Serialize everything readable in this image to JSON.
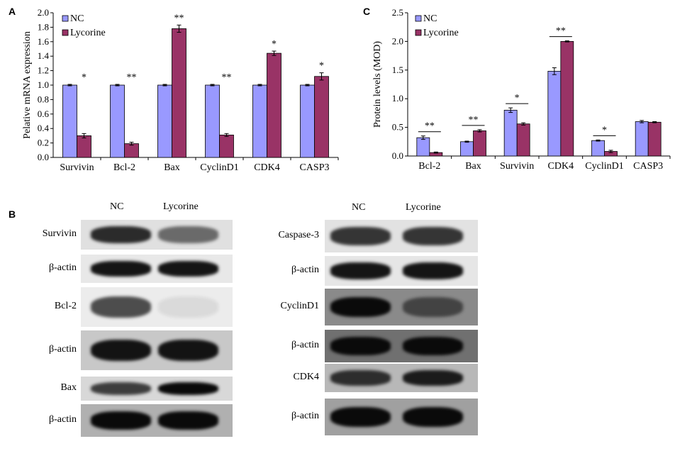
{
  "panel_labels": {
    "a": "A",
    "b": "B",
    "c": "C"
  },
  "chart_data": [
    {
      "type": "bar",
      "panel": "A",
      "ylabel": "Pelative mRNA expression",
      "xlabel": "",
      "title": "",
      "ylim": [
        0,
        2.0
      ],
      "yticks": [
        "0.0",
        "0.2",
        "0.4",
        "0.6",
        "0.8",
        "1.0",
        "1.2",
        "1.4",
        "1.6",
        "1.8",
        "2.0"
      ],
      "categories": [
        "Survivin",
        "Bcl-2",
        "Bax",
        "CyclinD1",
        "CDK4",
        "CASP3"
      ],
      "series": [
        {
          "name": "NC",
          "values": [
            1.0,
            1.0,
            1.0,
            1.0,
            1.0,
            1.0
          ],
          "errors": [
            0.01,
            0.01,
            0.01,
            0.01,
            0.01,
            0.01
          ]
        },
        {
          "name": "Lycorine",
          "values": [
            0.3,
            0.19,
            1.78,
            0.31,
            1.44,
            1.12
          ],
          "errors": [
            0.03,
            0.02,
            0.05,
            0.02,
            0.03,
            0.05
          ]
        }
      ],
      "significance": [
        "*",
        "**",
        "**",
        "**",
        "*",
        "*"
      ],
      "colors": {
        "nc": "#9999ff",
        "lycorine": "#993366"
      },
      "legend": "top-left"
    },
    {
      "type": "bar",
      "panel": "C",
      "ylabel": "Protein levels (MOD)",
      "xlabel": "",
      "title": "",
      "ylim": [
        0,
        2.5
      ],
      "yticks": [
        "0.0",
        "0.5",
        "1.0",
        "1.5",
        "2.0",
        "2.5"
      ],
      "categories": [
        "Bcl-2",
        "Bax",
        "Survivin",
        "CDK4",
        "CyclinD1",
        "CASP3"
      ],
      "series": [
        {
          "name": "NC",
          "values": [
            0.32,
            0.25,
            0.8,
            1.48,
            0.27,
            0.6
          ],
          "errors": [
            0.03,
            0.01,
            0.04,
            0.06,
            0.01,
            0.02
          ]
        },
        {
          "name": "Lycorine",
          "values": [
            0.06,
            0.44,
            0.56,
            2.0,
            0.08,
            0.59
          ],
          "errors": [
            0.01,
            0.02,
            0.02,
            0.01,
            0.02,
            0.01
          ]
        }
      ],
      "significance": [
        "**",
        "**",
        "*",
        "**",
        "*",
        ""
      ],
      "colors": {
        "nc": "#9999ff",
        "lycorine": "#993366"
      },
      "legend": "top-left"
    }
  ],
  "blots": {
    "left": {
      "columns": [
        "NC",
        "Lycorine"
      ],
      "rows": [
        {
          "label": "Survivin",
          "nc": 0.85,
          "ly": 0.55,
          "bg": "#e0e0e0"
        },
        {
          "label": "β-actin",
          "nc": 0.95,
          "ly": 0.95,
          "bg": "#e8e8e8"
        },
        {
          "label": "Bcl-2",
          "nc": 0.7,
          "ly": 0.08,
          "bg": "#ececec"
        },
        {
          "label": "β-actin",
          "nc": 0.95,
          "ly": 0.95,
          "bg": "#c8c8c8"
        },
        {
          "label": "Bax",
          "nc": 0.75,
          "ly": 1.0,
          "bg": "#d8d8d8"
        },
        {
          "label": "β-actin",
          "nc": 1.0,
          "ly": 1.0,
          "bg": "#b0b0b0"
        }
      ]
    },
    "right": {
      "columns": [
        "NC",
        "Lycorine"
      ],
      "rows": [
        {
          "label": "Caspase-3",
          "nc": 0.8,
          "ly": 0.8,
          "bg": "#e2e2e2"
        },
        {
          "label": "β-actin",
          "nc": 0.95,
          "ly": 0.95,
          "bg": "#e6e6e6"
        },
        {
          "label": "CyclinD1",
          "nc": 1.0,
          "ly": 0.55,
          "bg": "#8a8a8a"
        },
        {
          "label": "β-actin",
          "nc": 1.0,
          "ly": 1.0,
          "bg": "#707070"
        },
        {
          "label": "CDK4",
          "nc": 0.8,
          "ly": 0.9,
          "bg": "#b8b8b8"
        },
        {
          "label": "β-actin",
          "nc": 1.0,
          "ly": 1.0,
          "bg": "#a0a0a0"
        }
      ]
    }
  }
}
